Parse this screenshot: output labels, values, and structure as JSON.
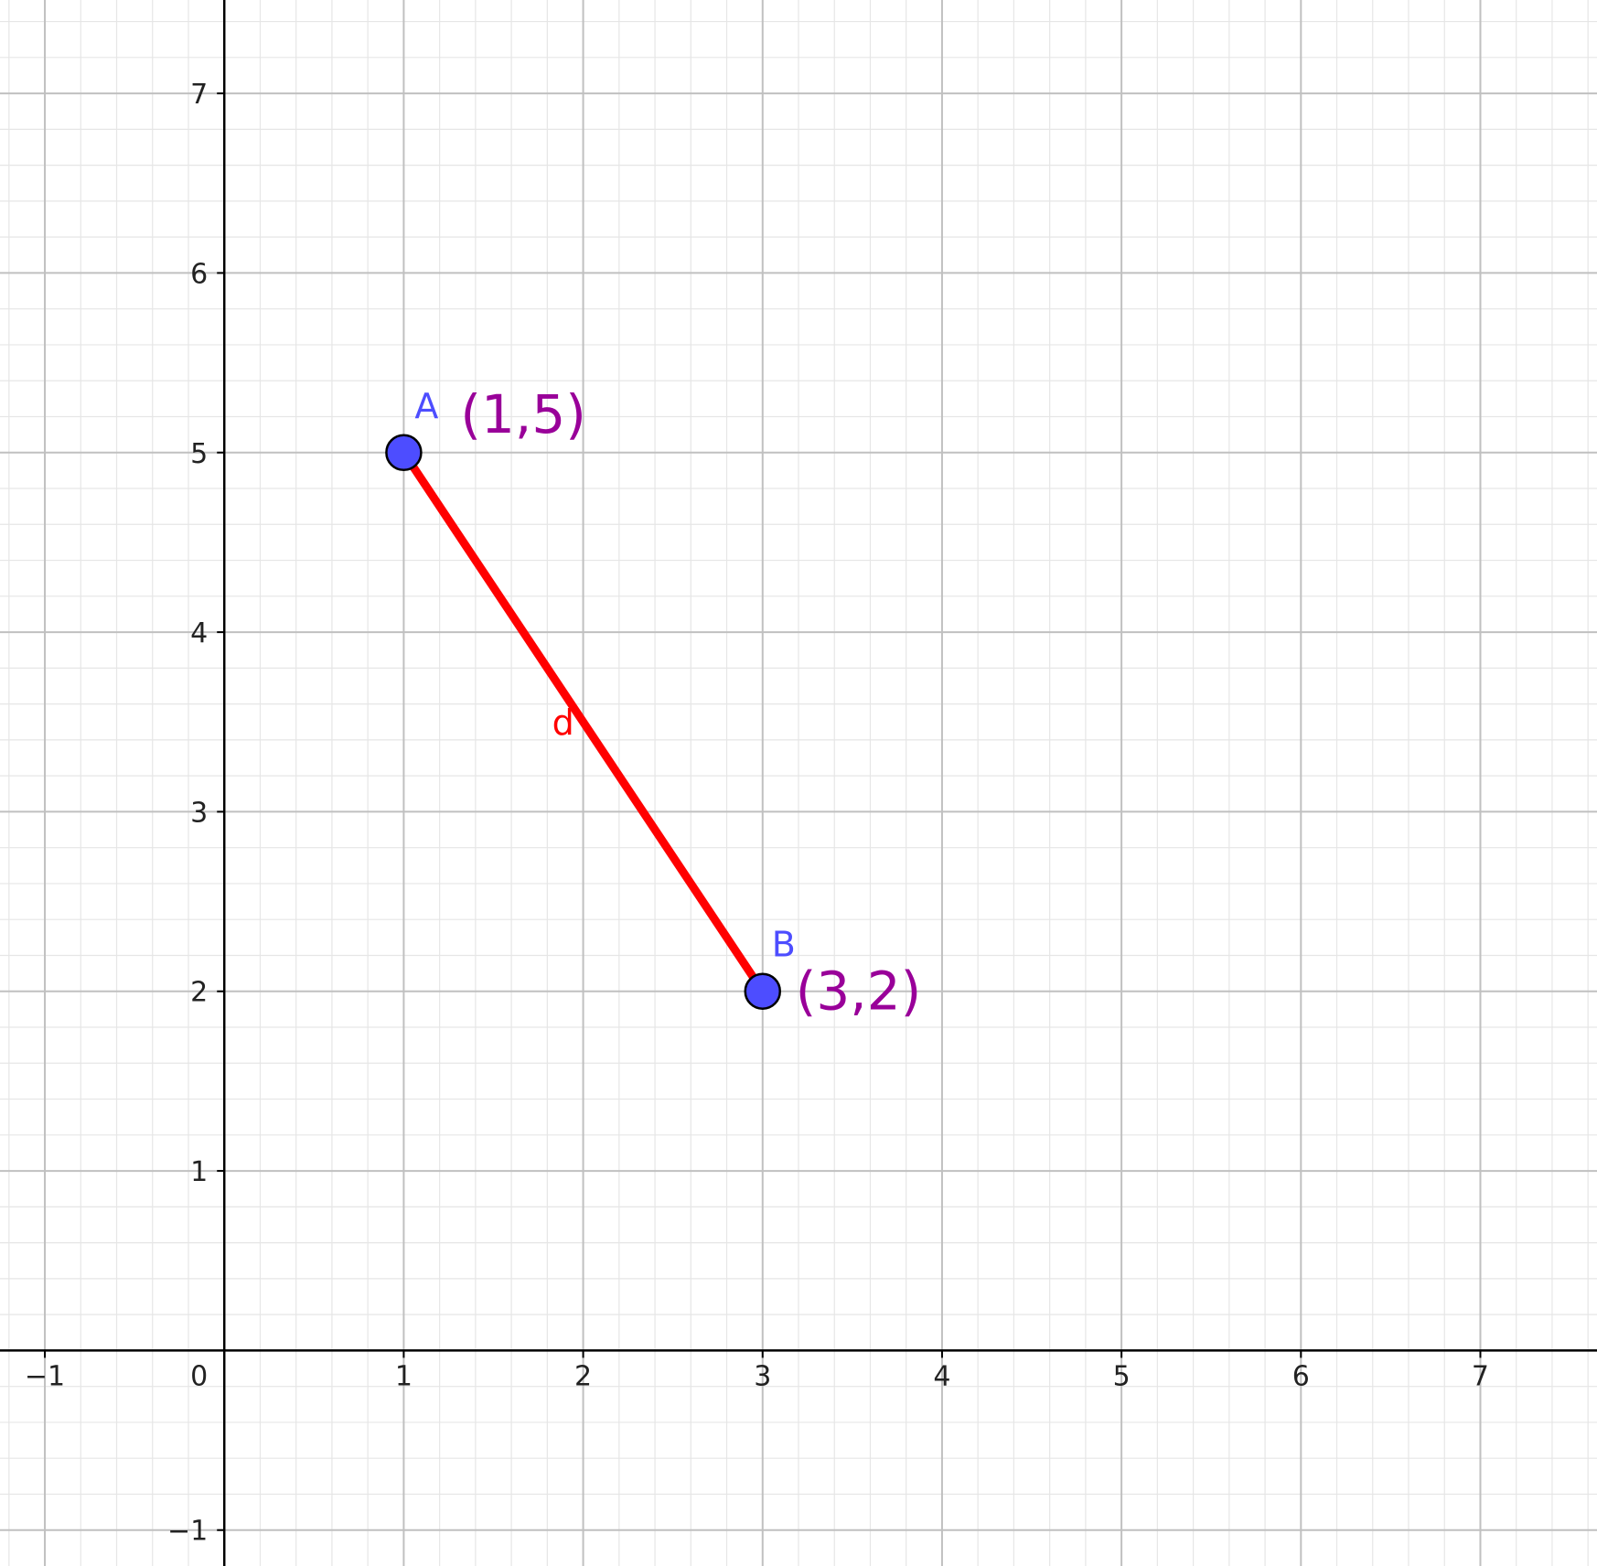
{
  "chart_data": {
    "type": "scatter",
    "title": "",
    "xlabel": "",
    "ylabel": "",
    "xlim": [
      -1.25,
      7.65
    ],
    "ylim": [
      -1.2,
      7.52
    ],
    "grid": true,
    "minor_grid_per_unit": 5,
    "x_ticks": [
      {
        "value": -1,
        "label": "−1"
      },
      {
        "value": 0,
        "label": "0"
      },
      {
        "value": 1,
        "label": "1"
      },
      {
        "value": 2,
        "label": "2"
      },
      {
        "value": 3,
        "label": "3"
      },
      {
        "value": 4,
        "label": "4"
      },
      {
        "value": 5,
        "label": "5"
      },
      {
        "value": 6,
        "label": "6"
      },
      {
        "value": 7,
        "label": "7"
      }
    ],
    "y_ticks": [
      {
        "value": -1,
        "label": "−1"
      },
      {
        "value": 1,
        "label": "1"
      },
      {
        "value": 2,
        "label": "2"
      },
      {
        "value": 3,
        "label": "3"
      },
      {
        "value": 4,
        "label": "4"
      },
      {
        "value": 5,
        "label": "5"
      },
      {
        "value": 6,
        "label": "6"
      },
      {
        "value": 7,
        "label": "7"
      }
    ],
    "points": [
      {
        "name": "A",
        "x": 1,
        "y": 5,
        "coord_text": "(1,5)"
      },
      {
        "name": "B",
        "x": 3,
        "y": 2,
        "coord_text": "(3,2)"
      }
    ],
    "segments": [
      {
        "name": "d",
        "from": "A",
        "to": "B"
      }
    ],
    "colors": {
      "axis": "#000000",
      "major_grid": "#c0c0c0",
      "minor_grid": "#e6e6e6",
      "point_fill": "#4d4dff",
      "point_label": "#4d4dff",
      "coord_label": "#990099",
      "segment": "#ff0000"
    }
  }
}
